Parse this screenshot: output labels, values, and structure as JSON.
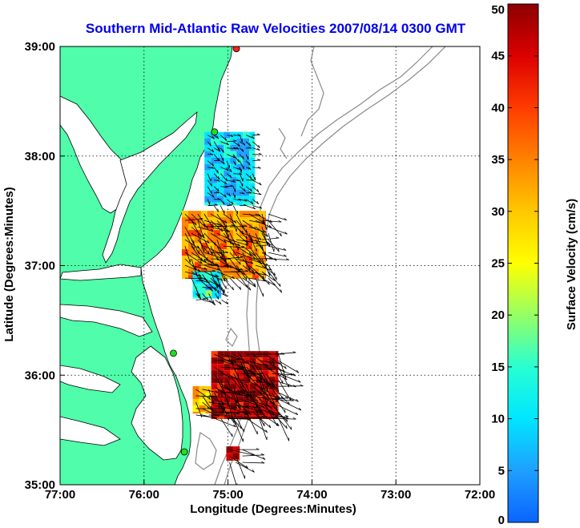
{
  "title": "Southern Mid-Atlantic Raw Velocities 2007/08/14 0300 GMT",
  "chart_data": {
    "type": "vector-field-map",
    "xlabel": "Longitude (Degrees:Minutes)",
    "ylabel": "Latitude (Degrees:Minutes)",
    "xlim": [
      77,
      72
    ],
    "ylim": [
      35,
      39
    ],
    "x_ticks": [
      {
        "value": 77,
        "label": "77:00"
      },
      {
        "value": 76,
        "label": "76:00"
      },
      {
        "value": 75,
        "label": "75:00"
      },
      {
        "value": 74,
        "label": "74:00"
      },
      {
        "value": 73,
        "label": "73:00"
      },
      {
        "value": 72,
        "label": "72:00"
      }
    ],
    "y_ticks": [
      {
        "value": 39,
        "label": "39:00"
      },
      {
        "value": 38,
        "label": "38:00"
      },
      {
        "value": 37,
        "label": "37:00"
      },
      {
        "value": 36,
        "label": "36:00"
      },
      {
        "value": 35,
        "label": "35:00"
      }
    ],
    "grid": true,
    "colorbar": {
      "label": "Surface Velocity (cm/s)",
      "range": [
        0,
        50
      ],
      "ticks": [
        {
          "value": 50,
          "label": "50"
        },
        {
          "value": 45,
          "label": "45"
        },
        {
          "value": 40,
          "label": "40"
        },
        {
          "value": 35,
          "label": "35"
        },
        {
          "value": 30,
          "label": "30"
        },
        {
          "value": 25,
          "label": "25"
        },
        {
          "value": 20,
          "label": "20"
        },
        {
          "value": 15,
          "label": "15"
        },
        {
          "value": 10,
          "label": "10"
        },
        {
          "value": 5,
          "label": "5"
        },
        {
          "value": 0,
          "label": "0"
        }
      ],
      "colors": [
        "#0a64ff",
        "#1ea0ff",
        "#00e6ff",
        "#28ffd2",
        "#96ff64",
        "#ffff00",
        "#ffc800",
        "#ff8200",
        "#ff3c00",
        "#dc0000",
        "#8c0000"
      ]
    },
    "land_color": "#4ffdaa",
    "stations": [
      {
        "name": "station-38-8",
        "lon": 74.9,
        "lat": 38.98,
        "color": "#ff2020"
      },
      {
        "name": "station-38-2",
        "lon": 75.16,
        "lat": 38.22,
        "color": "#20e020"
      },
      {
        "name": "station-36-2",
        "lon": 75.65,
        "lat": 36.2,
        "color": "#20e020"
      },
      {
        "name": "station-35-3",
        "lon": 75.52,
        "lat": 35.3,
        "color": "#20e020"
      }
    ],
    "regions": [
      {
        "name": "upper-low",
        "lon": [
          74.68,
          75.28
        ],
        "lat": [
          37.55,
          38.22
        ],
        "speed": 10
      },
      {
        "name": "upper-core",
        "lon": [
          74.55,
          75.55
        ],
        "lat": [
          36.88,
          37.5
        ],
        "speed": 34
      },
      {
        "name": "upper-south",
        "lon": [
          75.08,
          75.42
        ],
        "lat": [
          36.7,
          36.95
        ],
        "speed": 12
      },
      {
        "name": "lower-core",
        "lon": [
          74.4,
          75.2
        ],
        "lat": [
          35.6,
          36.22
        ],
        "speed": 47
      },
      {
        "name": "lower-west",
        "lon": [
          75.2,
          75.42
        ],
        "lat": [
          35.65,
          35.9
        ],
        "speed": 30
      },
      {
        "name": "south-patch",
        "lon": [
          74.86,
          75.02
        ],
        "lat": [
          35.22,
          35.35
        ],
        "speed": 46
      }
    ]
  }
}
